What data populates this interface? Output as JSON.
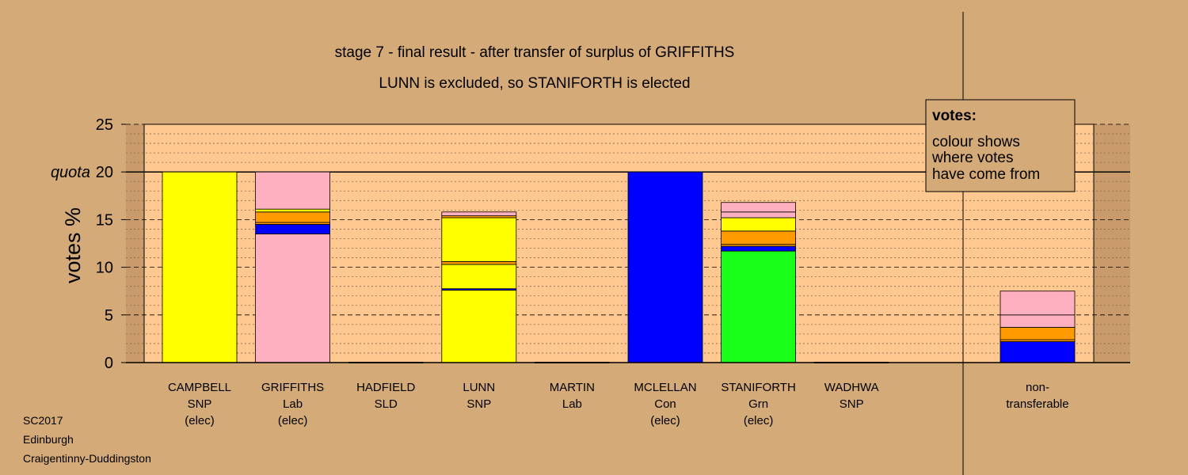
{
  "chart_data": {
    "type": "bar",
    "stacked": true,
    "title": "stage 7 - final result - after transfer of surplus of GRIFFITHS",
    "subtitle": "LUNN is excluded, so STANIFORTH is elected",
    "ylabel": "votes %",
    "ylim": [
      0,
      25
    ],
    "yticks": [
      0,
      5,
      10,
      15,
      20,
      25
    ],
    "quota": {
      "label": "quota",
      "value": 20
    },
    "grid": true,
    "legend": {
      "placement": "top-right",
      "title": "votes:",
      "lines": [
        "colour shows",
        "where votes",
        "have come from"
      ]
    },
    "candidates": [
      {
        "name": "CAMPBELL",
        "party": "SNP",
        "status": "(elec)",
        "segments": [
          {
            "color": "#ffff00",
            "value": 20.0
          }
        ]
      },
      {
        "name": "GRIFFITHS",
        "party": "Lab",
        "status": "(elec)",
        "segments": [
          {
            "color": "#ffb0c0",
            "value": 13.5
          },
          {
            "color": "#0000ff",
            "value": 1.0
          },
          {
            "color": "#ff9b00",
            "value": 0.2
          },
          {
            "color": "#ff9b00",
            "value": 1.1
          },
          {
            "color": "#ffff00",
            "value": 0.3
          },
          {
            "color": "#ffb0c0",
            "value": 3.9
          }
        ]
      },
      {
        "name": "HADFIELD",
        "party": "SLD",
        "status": "",
        "segments": []
      },
      {
        "name": "LUNN",
        "party": "SNP",
        "status": "",
        "segments": [
          {
            "color": "#ffff00",
            "value": 7.6
          },
          {
            "color": "#0000ff",
            "value": 0.15
          },
          {
            "color": "#ffff00",
            "value": 2.55
          },
          {
            "color": "#ff9b00",
            "value": 0.3
          },
          {
            "color": "#ffff00",
            "value": 4.6
          },
          {
            "color": "#ff9b00",
            "value": 0.2
          },
          {
            "color": "#ffb0c0",
            "value": 0.4
          }
        ]
      },
      {
        "name": "MARTIN",
        "party": "Lab",
        "status": "",
        "segments": []
      },
      {
        "name": "MCLELLAN",
        "party": "Con",
        "status": "(elec)",
        "segments": [
          {
            "color": "#0000ff",
            "value": 20.0
          }
        ]
      },
      {
        "name": "STANIFORTH",
        "party": "Grn",
        "status": "(elec)",
        "segments": [
          {
            "color": "#1aff1a",
            "value": 11.7
          },
          {
            "color": "#0000ff",
            "value": 0.5
          },
          {
            "color": "#ff9b00",
            "value": 0.2
          },
          {
            "color": "#ff9b00",
            "value": 1.4
          },
          {
            "color": "#ffff00",
            "value": 1.4
          },
          {
            "color": "#ffb0c0",
            "value": 0.6
          },
          {
            "color": "#ffb0c0",
            "value": 1.0
          }
        ]
      },
      {
        "name": "WADHWA",
        "party": "SNP",
        "status": "",
        "segments": []
      }
    ],
    "nontransferable": {
      "label_lines": [
        "non-",
        "transferable"
      ],
      "segments": [
        {
          "color": "#0000ff",
          "value": 2.2
        },
        {
          "color": "#ff9b00",
          "value": 0.2
        },
        {
          "color": "#ff9b00",
          "value": 1.3
        },
        {
          "color": "#ffb0c0",
          "value": 1.3
        },
        {
          "color": "#ffb0c0",
          "value": 2.5
        }
      ]
    }
  },
  "footer": {
    "lines": [
      "SC2017",
      "Edinburgh",
      "Craigentinny-Duddingston"
    ]
  },
  "colors": {
    "background": "#d4aa78",
    "plot_area": "#ffc890",
    "plot_margin": "#c89a6c"
  }
}
